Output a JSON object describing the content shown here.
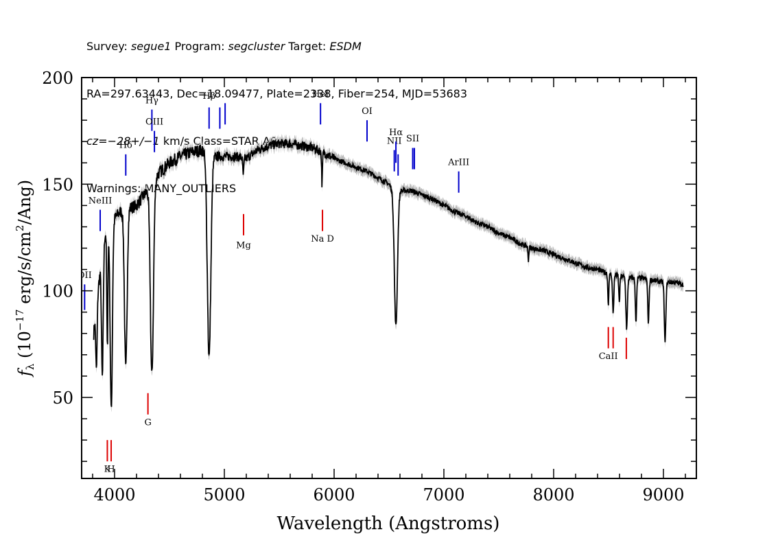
{
  "header": {
    "survey_label": "Survey: ",
    "survey": "segue1",
    "program_label": " Program: ",
    "program": "segcluster",
    "target_label": " Target: ",
    "target": "ESDM",
    "line2": "RA=297.63443, Dec=18.09477, Plate=2338, Fiber=254, MJD=53683",
    "cz": "cz=−28+/−1",
    "line3_rest": " km/s Class=STAR A0",
    "line4": "Warnings: MANY_OUTLIERS"
  },
  "chart_data": {
    "type": "line",
    "xlabel": "Wavelength (Angstroms)",
    "ylabel_prefix": "f",
    "ylabel_sub": "λ",
    "ylabel_main": "(10",
    "ylabel_exp": "−17",
    "ylabel_mid": " erg/s/cm",
    "ylabel_exp2": "2",
    "ylabel_end": "/Ang)",
    "xlim": [
      3700,
      9300
    ],
    "ylim": [
      12,
      200
    ],
    "xticks": [
      4000,
      5000,
      6000,
      7000,
      8000,
      9000
    ],
    "yticks": [
      50,
      100,
      150,
      200
    ],
    "continuum": [
      [
        3810,
        80
      ],
      [
        3850,
        100
      ],
      [
        3900,
        125
      ],
      [
        3950,
        130
      ],
      [
        4000,
        134
      ],
      [
        4050,
        137
      ],
      [
        4100,
        138
      ],
      [
        4200,
        140
      ],
      [
        4300,
        147
      ],
      [
        4400,
        155
      ],
      [
        4500,
        160
      ],
      [
        4600,
        163
      ],
      [
        4700,
        165
      ],
      [
        4800,
        166
      ],
      [
        4900,
        163
      ],
      [
        5000,
        163
      ],
      [
        5100,
        163
      ],
      [
        5200,
        162
      ],
      [
        5300,
        166
      ],
      [
        5400,
        168
      ],
      [
        5500,
        169
      ],
      [
        5600,
        169
      ],
      [
        5700,
        168
      ],
      [
        5800,
        167
      ],
      [
        5900,
        165
      ],
      [
        6000,
        162
      ],
      [
        6100,
        160
      ],
      [
        6200,
        158
      ],
      [
        6300,
        156
      ],
      [
        6400,
        153
      ],
      [
        6500,
        150
      ],
      [
        6550,
        146
      ],
      [
        6600,
        147
      ],
      [
        6700,
        147
      ],
      [
        6800,
        145
      ],
      [
        6900,
        143
      ],
      [
        7000,
        140
      ],
      [
        7100,
        137
      ],
      [
        7200,
        135
      ],
      [
        7300,
        132
      ],
      [
        7400,
        130
      ],
      [
        7500,
        127
      ],
      [
        7600,
        125
      ],
      [
        7700,
        122
      ],
      [
        7800,
        120
      ],
      [
        7900,
        119
      ],
      [
        8000,
        117
      ],
      [
        8100,
        115
      ],
      [
        8200,
        113
      ],
      [
        8300,
        111
      ],
      [
        8400,
        110
      ],
      [
        8500,
        108
      ],
      [
        8600,
        107
      ],
      [
        8700,
        106
      ],
      [
        8800,
        106
      ],
      [
        8900,
        105
      ],
      [
        9000,
        104
      ],
      [
        9100,
        104
      ],
      [
        9180,
        103
      ]
    ],
    "absorption_lines": [
      {
        "wave": 3835,
        "depth": 30,
        "width": 6
      },
      {
        "wave": 3889,
        "depth": 60,
        "width": 8
      },
      {
        "wave": 3934,
        "depth": 55,
        "width": 5
      },
      {
        "wave": 3970,
        "depth": 88,
        "width": 10
      },
      {
        "wave": 4102,
        "depth": 75,
        "width": 12
      },
      {
        "wave": 4340,
        "depth": 90,
        "width": 14
      },
      {
        "wave": 4861,
        "depth": 95,
        "width": 16
      },
      {
        "wave": 5173,
        "depth": 8,
        "width": 5
      },
      {
        "wave": 5890,
        "depth": 15,
        "width": 4
      },
      {
        "wave": 6563,
        "depth": 63,
        "width": 14
      },
      {
        "wave": 7770,
        "depth": 6,
        "width": 4
      },
      {
        "wave": 8498,
        "depth": 14,
        "width": 5
      },
      {
        "wave": 8542,
        "depth": 18,
        "width": 6
      },
      {
        "wave": 8598,
        "depth": 12,
        "width": 5
      },
      {
        "wave": 8665,
        "depth": 24,
        "width": 7
      },
      {
        "wave": 8750,
        "depth": 20,
        "width": 6
      },
      {
        "wave": 8863,
        "depth": 20,
        "width": 6
      },
      {
        "wave": 9015,
        "depth": 28,
        "width": 7
      }
    ],
    "emission_labels": [
      {
        "label": "OII",
        "wave": 3727,
        "y0": 91,
        "y1": 103,
        "ty": 106
      },
      {
        "label": "NeIII",
        "wave": 3869,
        "y0": 128,
        "y1": 138,
        "ty": 141
      },
      {
        "label": "Hδ",
        "wave": 4102,
        "y0": 154,
        "y1": 164,
        "ty": 167
      },
      {
        "label": "Hγ",
        "wave": 4340,
        "y0": 175,
        "y1": 185,
        "ty": 188
      },
      {
        "label": "OIII",
        "wave": 4363,
        "y0": 165,
        "y1": 175,
        "ty": 178
      },
      {
        "label": "Hβ",
        "wave": 4861,
        "y0": 176,
        "y1": 186,
        "ty": 190
      },
      {
        "label": "OIII",
        "wave": 4959,
        "y0": 176,
        "y1": 186,
        "ty": 0
      },
      {
        "label": "",
        "wave": 5007,
        "y0": 178,
        "y1": 188,
        "ty": 0
      },
      {
        "label": "HeI",
        "wave": 5876,
        "y0": 178,
        "y1": 188,
        "ty": 191
      },
      {
        "label": "OI",
        "wave": 6300,
        "y0": 170,
        "y1": 180,
        "ty": 183
      },
      {
        "label": "NII",
        "wave": 6548,
        "y0": 156,
        "y1": 166,
        "ty": 169
      },
      {
        "label": "Hα",
        "wave": 6563,
        "y0": 160,
        "y1": 170,
        "ty": 173
      },
      {
        "label": "NII",
        "wave": 6583,
        "y0": 154,
        "y1": 164,
        "ty": 0
      },
      {
        "label": "SII",
        "wave": 6716,
        "y0": 157,
        "y1": 167,
        "ty": 170
      },
      {
        "label": "",
        "wave": 6731,
        "y0": 157,
        "y1": 167,
        "ty": 0
      },
      {
        "label": "ArIII",
        "wave": 7135,
        "y0": 146,
        "y1": 156,
        "ty": 159
      }
    ],
    "absorption_labels": [
      {
        "label": "K",
        "wave": 3934,
        "y0": 20,
        "y1": 30,
        "ty": 15
      },
      {
        "label": "H",
        "wave": 3969,
        "y0": 20,
        "y1": 30,
        "ty": 15
      },
      {
        "label": "G",
        "wave": 4304,
        "y0": 42,
        "y1": 52,
        "ty": 37
      },
      {
        "label": "Mg",
        "wave": 5175,
        "y0": 126,
        "y1": 136,
        "ty": 120
      },
      {
        "label": "Na D",
        "wave": 5894,
        "y0": 128,
        "y1": 138,
        "ty": 123
      },
      {
        "label": "CaII",
        "wave": 8498,
        "y0": 73,
        "y1": 83,
        "ty": 68
      },
      {
        "label": "",
        "wave": 8542,
        "y0": 73,
        "y1": 83,
        "ty": 0
      },
      {
        "label": "",
        "wave": 8662,
        "y0": 68,
        "y1": 78,
        "ty": 0
      }
    ],
    "colors": {
      "spectrum": "#000000",
      "error_band": "#b8b8b8",
      "emission": "#0000cc",
      "absorption": "#dd0000"
    }
  }
}
